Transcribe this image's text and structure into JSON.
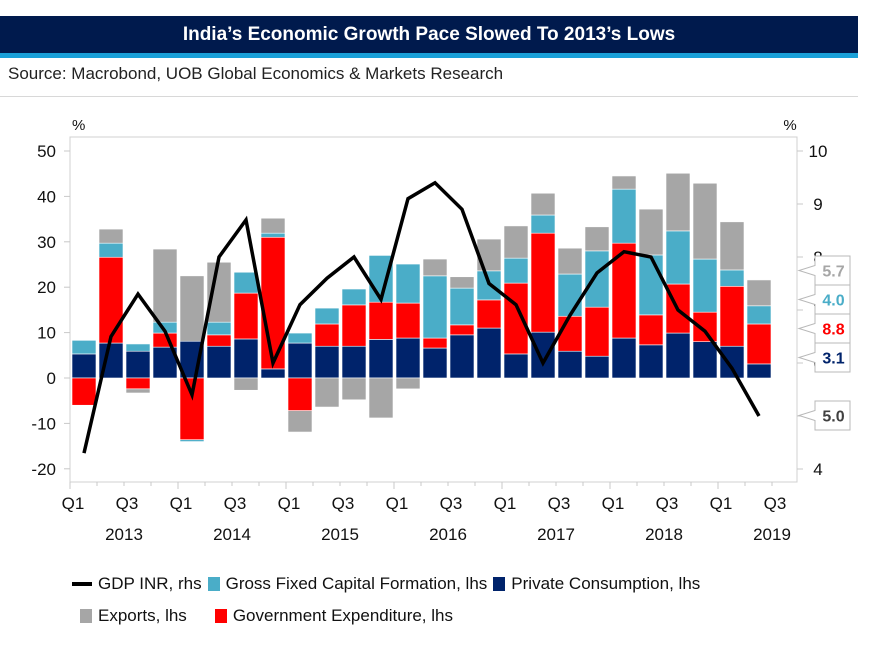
{
  "header": {
    "title": "India’s Economic Growth Pace Slowed To 2013’s Lows",
    "source": "Source: Macrobond, UOB Global Economics & Markets Research"
  },
  "colors": {
    "title_bg": "#001a4d",
    "title_accent": "#1aa0d8",
    "private_consumption": "#00236b",
    "government_expenditure": "#ff0000",
    "gross_fixed_capital_formation": "#4aadc8",
    "exports": "#a6a6a6",
    "gdp": "#000000"
  },
  "chart_data": {
    "type": "bar",
    "subtype": "stacked bar + line (dual axis)",
    "title": "India’s Economic Growth Pace Slowed To 2013’s Lows",
    "left_axis": {
      "label": "%",
      "ylim": [
        -22,
        55
      ],
      "ticks": [
        -20,
        -10,
        0,
        10,
        20,
        30,
        40,
        50
      ]
    },
    "right_axis": {
      "label": "%",
      "ylim": [
        3.7,
        10.3
      ],
      "ticks": [
        4,
        5,
        6,
        7,
        8,
        9,
        10
      ]
    },
    "x_ticks": [
      "Q1",
      "Q3",
      "Q1",
      "Q3",
      "Q1",
      "Q3",
      "Q1",
      "Q3",
      "Q1",
      "Q3",
      "Q1",
      "Q3",
      "Q1",
      "Q3"
    ],
    "x_years": [
      "2013",
      "2014",
      "2015",
      "2016",
      "2017",
      "2018",
      "2019"
    ],
    "categories": [
      "2013Q1",
      "2013Q2",
      "2013Q3",
      "2013Q4",
      "2014Q1",
      "2014Q2",
      "2014Q3",
      "2014Q4",
      "2015Q1",
      "2015Q2",
      "2015Q3",
      "2015Q4",
      "2016Q1",
      "2016Q2",
      "2016Q3",
      "2016Q4",
      "2017Q1",
      "2017Q2",
      "2017Q3",
      "2017Q4",
      "2018Q1",
      "2018Q2",
      "2018Q3",
      "2018Q4",
      "2019Q1",
      "2019Q2"
    ],
    "series": [
      {
        "name": "Private Consumption, lhs",
        "key": "private_consumption",
        "axis": "left",
        "type": "bar",
        "values": [
          5.3,
          7.7,
          5.9,
          6.8,
          8.1,
          7.0,
          8.6,
          2.0,
          7.7,
          7.0,
          7.0,
          8.5,
          8.8,
          6.6,
          9.5,
          11.0,
          5.3,
          10.1,
          5.9,
          4.8,
          8.8,
          7.3,
          9.9,
          8.0,
          7.0,
          3.1
        ]
      },
      {
        "name": "Government Expenditure, lhs",
        "key": "government_expenditure",
        "axis": "left",
        "type": "bar",
        "values": [
          -6.0,
          18.9,
          -2.4,
          3.1,
          -13.6,
          2.5,
          10.1,
          29.0,
          -7.2,
          4.9,
          9.1,
          8.2,
          7.7,
          2.2,
          2.2,
          6.2,
          15.6,
          21.8,
          7.7,
          10.8,
          20.9,
          6.6,
          10.8,
          6.5,
          13.2,
          8.8
        ]
      },
      {
        "name": "Gross Fixed Capital Formation, lhs",
        "key": "gross_fixed_capital_formation",
        "axis": "left",
        "type": "bar",
        "values": [
          3.0,
          3.1,
          1.6,
          2.4,
          -0.4,
          2.8,
          4.6,
          0.9,
          2.2,
          3.5,
          3.5,
          10.3,
          8.6,
          13.7,
          8.1,
          6.4,
          5.5,
          4.0,
          9.3,
          12.4,
          11.9,
          13.2,
          11.7,
          11.7,
          3.6,
          4.0
        ]
      },
      {
        "name": "Exports, lhs",
        "key": "exports",
        "axis": "left",
        "type": "bar",
        "values": [
          0.0,
          3.1,
          -0.9,
          16.1,
          14.4,
          13.2,
          -2.7,
          3.3,
          -4.7,
          -6.4,
          -4.8,
          -8.8,
          -2.4,
          3.7,
          2.5,
          7.0,
          7.1,
          4.8,
          5.7,
          5.3,
          2.9,
          10.1,
          12.7,
          16.7,
          10.6,
          5.7
        ]
      },
      {
        "name": "GDP INR, rhs",
        "key": "gdp",
        "axis": "right",
        "type": "line",
        "values": [
          4.3,
          6.5,
          7.3,
          6.6,
          5.4,
          8.0,
          8.7,
          6.0,
          7.1,
          7.6,
          8.0,
          7.2,
          9.1,
          9.4,
          8.9,
          7.5,
          7.1,
          6.0,
          6.9,
          7.7,
          8.1,
          8.0,
          7.0,
          6.6,
          5.9,
          5.0
        ]
      }
    ],
    "end_labels": [
      {
        "text": "5.7",
        "series": "exports"
      },
      {
        "text": "4.0",
        "series": "gross_fixed_capital_formation"
      },
      {
        "text": "8.8",
        "series": "government_expenditure"
      },
      {
        "text": "3.1",
        "series": "private_consumption"
      },
      {
        "text": "5.0",
        "series": "gdp"
      }
    ],
    "end_label_colors": {
      "exports": "#a6a6a6",
      "gross_fixed_capital_formation": "#4aadc8",
      "government_expenditure": "#ff0000",
      "private_consumption": "#00236b",
      "gdp": "#404040"
    },
    "legend": {
      "placement": "bottom",
      "rows": [
        [
          {
            "label": "GDP INR, rhs",
            "key": "gdp",
            "kind": "line"
          },
          {
            "label": "Gross Fixed Capital Formation, lhs",
            "key": "gross_fixed_capital_formation",
            "kind": "box"
          },
          {
            "label": "Private Consumption, lhs",
            "key": "private_consumption",
            "kind": "box"
          }
        ],
        [
          {
            "label": "Exports, lhs",
            "key": "exports",
            "kind": "box"
          },
          {
            "label": "Government Expenditure, lhs",
            "key": "government_expenditure",
            "kind": "box"
          }
        ]
      ]
    },
    "grid": false
  }
}
